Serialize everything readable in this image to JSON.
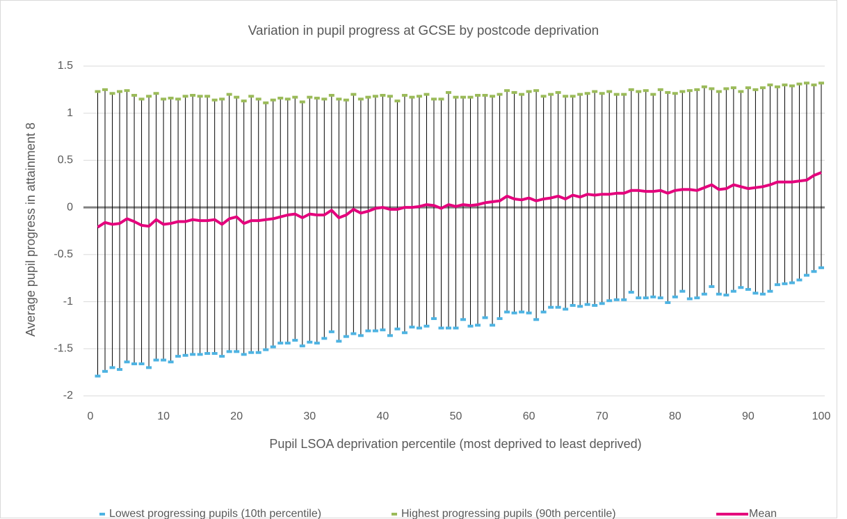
{
  "chart_data": {
    "type": "line",
    "title": "Variation in pupil progress at GCSE by postcode deprivation",
    "x_label": "Pupil LSOA deprivation percentile (most deprived to least deprived)",
    "y_label": "Average pupil progress in attainment 8",
    "x": [
      1,
      2,
      3,
      4,
      5,
      6,
      7,
      8,
      9,
      10,
      11,
      12,
      13,
      14,
      15,
      16,
      17,
      18,
      19,
      20,
      21,
      22,
      23,
      24,
      25,
      26,
      27,
      28,
      29,
      30,
      31,
      32,
      33,
      34,
      35,
      36,
      37,
      38,
      39,
      40,
      41,
      42,
      43,
      44,
      45,
      46,
      47,
      48,
      49,
      50,
      51,
      52,
      53,
      54,
      55,
      56,
      57,
      58,
      59,
      60,
      61,
      62,
      63,
      64,
      65,
      66,
      67,
      68,
      69,
      70,
      71,
      72,
      73,
      74,
      75,
      76,
      77,
      78,
      79,
      80,
      81,
      82,
      83,
      84,
      85,
      86,
      87,
      88,
      89,
      90,
      91,
      92,
      93,
      94,
      95,
      96,
      97,
      98,
      99,
      100
    ],
    "series": [
      {
        "name": "Lowest progressing pupils (10th percentile)",
        "color": "#4db3e2",
        "values": [
          -1.79,
          -1.74,
          -1.7,
          -1.72,
          -1.64,
          -1.66,
          -1.66,
          -1.7,
          -1.62,
          -1.62,
          -1.64,
          -1.58,
          -1.57,
          -1.56,
          -1.56,
          -1.55,
          -1.55,
          -1.58,
          -1.53,
          -1.53,
          -1.56,
          -1.54,
          -1.54,
          -1.51,
          -1.48,
          -1.44,
          -1.44,
          -1.41,
          -1.47,
          -1.43,
          -1.44,
          -1.39,
          -1.32,
          -1.42,
          -1.37,
          -1.34,
          -1.36,
          -1.31,
          -1.31,
          -1.3,
          -1.36,
          -1.29,
          -1.33,
          -1.27,
          -1.28,
          -1.26,
          -1.18,
          -1.28,
          -1.28,
          -1.28,
          -1.19,
          -1.26,
          -1.25,
          -1.17,
          -1.25,
          -1.18,
          -1.11,
          -1.12,
          -1.11,
          -1.12,
          -1.19,
          -1.11,
          -1.06,
          -1.06,
          -1.08,
          -1.04,
          -1.05,
          -1.03,
          -1.04,
          -1.02,
          -0.99,
          -0.98,
          -0.98,
          -0.9,
          -0.96,
          -0.96,
          -0.95,
          -0.96,
          -1.01,
          -0.95,
          -0.89,
          -0.97,
          -0.96,
          -0.92,
          -0.84,
          -0.92,
          -0.93,
          -0.89,
          -0.85,
          -0.87,
          -0.91,
          -0.92,
          -0.89,
          -0.82,
          -0.81,
          -0.8,
          -0.77,
          -0.72,
          -0.68,
          -0.64
        ]
      },
      {
        "name": "Highest progressing pupils (90th percentile)",
        "color": "#9bbb59",
        "values": [
          1.23,
          1.25,
          1.21,
          1.23,
          1.24,
          1.19,
          1.15,
          1.18,
          1.21,
          1.15,
          1.16,
          1.15,
          1.18,
          1.19,
          1.18,
          1.18,
          1.14,
          1.15,
          1.2,
          1.17,
          1.13,
          1.18,
          1.15,
          1.11,
          1.14,
          1.16,
          1.15,
          1.17,
          1.12,
          1.17,
          1.16,
          1.15,
          1.19,
          1.15,
          1.14,
          1.2,
          1.15,
          1.17,
          1.18,
          1.19,
          1.18,
          1.13,
          1.19,
          1.17,
          1.18,
          1.2,
          1.15,
          1.15,
          1.22,
          1.17,
          1.17,
          1.17,
          1.19,
          1.19,
          1.18,
          1.2,
          1.24,
          1.22,
          1.2,
          1.23,
          1.24,
          1.18,
          1.2,
          1.22,
          1.18,
          1.18,
          1.2,
          1.21,
          1.23,
          1.21,
          1.23,
          1.2,
          1.2,
          1.25,
          1.23,
          1.24,
          1.2,
          1.25,
          1.22,
          1.21,
          1.23,
          1.24,
          1.25,
          1.28,
          1.26,
          1.23,
          1.26,
          1.27,
          1.23,
          1.27,
          1.25,
          1.27,
          1.3,
          1.28,
          1.3,
          1.29,
          1.31,
          1.32,
          1.3,
          1.32
        ]
      },
      {
        "name": "Mean",
        "color": "#e4007c",
        "values": [
          -0.21,
          -0.16,
          -0.18,
          -0.17,
          -0.12,
          -0.15,
          -0.19,
          -0.2,
          -0.13,
          -0.18,
          -0.17,
          -0.15,
          -0.15,
          -0.13,
          -0.14,
          -0.14,
          -0.13,
          -0.18,
          -0.12,
          -0.1,
          -0.17,
          -0.14,
          -0.14,
          -0.13,
          -0.12,
          -0.1,
          -0.08,
          -0.07,
          -0.11,
          -0.07,
          -0.08,
          -0.08,
          -0.03,
          -0.11,
          -0.08,
          -0.02,
          -0.06,
          -0.04,
          -0.01,
          0.0,
          -0.02,
          -0.02,
          0.0,
          0.0,
          0.01,
          0.03,
          0.02,
          -0.01,
          0.03,
          0.01,
          0.03,
          0.02,
          0.03,
          0.05,
          0.06,
          0.07,
          0.12,
          0.09,
          0.08,
          0.1,
          0.07,
          0.09,
          0.1,
          0.12,
          0.09,
          0.13,
          0.11,
          0.14,
          0.13,
          0.14,
          0.14,
          0.15,
          0.15,
          0.18,
          0.18,
          0.17,
          0.17,
          0.18,
          0.15,
          0.18,
          0.19,
          0.19,
          0.18,
          0.21,
          0.24,
          0.19,
          0.2,
          0.24,
          0.22,
          0.2,
          0.21,
          0.22,
          0.24,
          0.27,
          0.27,
          0.27,
          0.28,
          0.29,
          0.34,
          0.37
        ]
      }
    ],
    "xlim": [
      0,
      100
    ],
    "xticks": [
      0,
      10,
      20,
      30,
      40,
      50,
      60,
      70,
      80,
      90,
      100
    ],
    "ylim": [
      -2,
      1.5
    ],
    "yticks": [
      -2,
      {
        "value": -1.5,
        "label": "-1.5"
      },
      -1,
      {
        "value": -0.5,
        "label": "-0.5"
      },
      0,
      0.5,
      1,
      1.5
    ],
    "grid": true,
    "hi_lo_lines": true,
    "legend": "bottom"
  }
}
